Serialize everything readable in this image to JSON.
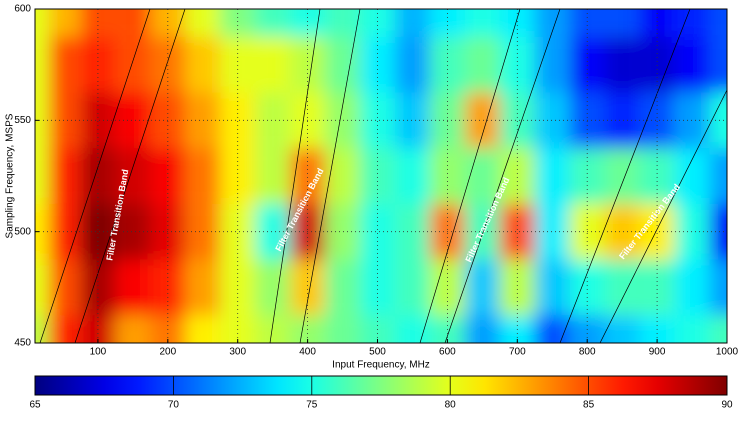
{
  "chart_data": {
    "type": "contour",
    "xlabel": "Input Frequency, MHz",
    "ylabel": "Sampling Frequency, MSPS",
    "x": [
      10,
      50,
      100,
      150,
      200,
      250,
      300,
      350,
      400,
      450,
      500,
      550,
      600,
      650,
      700,
      750,
      800,
      850,
      900,
      950,
      1000
    ],
    "y": [
      450,
      475,
      500,
      525,
      550,
      575,
      600
    ],
    "z": [
      [
        79,
        86,
        88,
        83,
        84,
        81,
        80,
        79,
        78,
        77,
        76,
        75,
        76,
        72,
        74,
        70,
        72,
        73,
        74,
        75,
        76
      ],
      [
        80,
        85,
        89,
        87,
        86,
        83,
        80,
        78,
        82,
        77,
        75,
        76,
        79,
        73,
        79,
        73,
        75,
        76,
        76,
        74,
        72
      ],
      [
        81,
        86,
        90,
        89,
        87.5,
        84,
        80,
        75,
        88,
        78,
        75,
        76,
        84,
        76,
        85,
        74,
        80,
        82,
        81,
        75,
        68
      ],
      [
        80,
        86,
        89,
        88,
        87,
        84,
        81,
        79,
        84,
        79,
        76,
        75,
        78,
        77,
        79,
        74,
        76,
        77,
        76,
        74,
        72
      ],
      [
        80,
        85,
        88,
        87,
        85,
        83,
        81,
        79,
        80,
        78,
        75,
        73,
        77,
        83,
        76,
        73,
        70,
        69,
        70,
        72,
        75
      ],
      [
        80,
        85,
        86,
        85,
        84,
        82,
        80,
        80,
        79,
        77,
        74,
        72,
        76,
        77,
        75,
        72,
        68,
        67,
        67,
        68,
        70
      ],
      [
        80,
        82.5,
        85,
        85,
        82.5,
        80,
        77.5,
        76,
        75,
        76,
        75,
        72.5,
        74,
        75,
        74,
        72,
        70,
        70,
        68,
        69,
        70
      ]
    ],
    "xlim": [
      10,
      1000
    ],
    "xticks": [
      100,
      200,
      300,
      400,
      500,
      600,
      700,
      800,
      900,
      1000
    ],
    "ylim": [
      450,
      600
    ],
    "yticks": [
      450,
      500,
      550,
      600
    ],
    "grid": true,
    "colormap": "jet",
    "clim": [
      65,
      90
    ],
    "colorbar_ticks": [
      65,
      70,
      75,
      80,
      85,
      90
    ],
    "annotations": [
      "Filter Transition Band",
      "Filter Transition Band",
      "Filter Transition Band",
      "Filter Transition Band"
    ]
  }
}
